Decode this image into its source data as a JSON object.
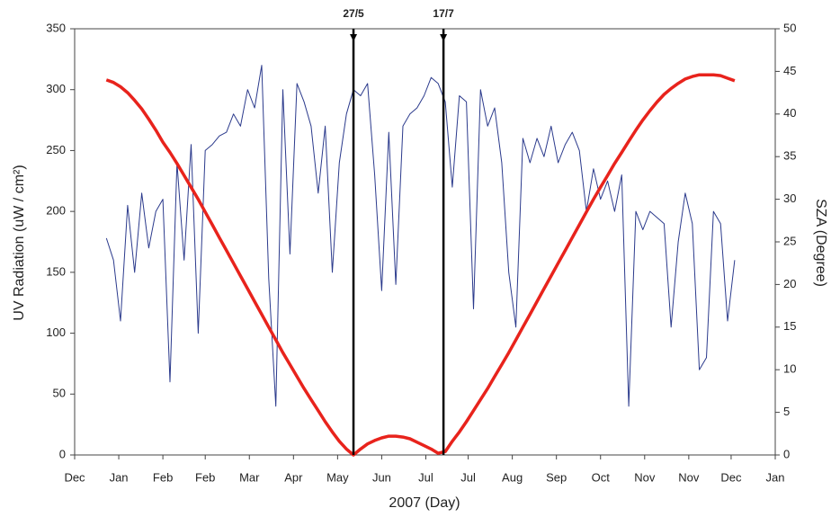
{
  "chart_data": {
    "type": "line",
    "xlabel": "2007  (Day)",
    "ylabel": "UV Radiation  (uW / cm²)",
    "y2label": "SZA  (Degree)",
    "x": [
      7,
      11,
      15,
      19,
      23,
      27,
      31,
      35,
      39,
      43,
      47,
      51,
      55,
      59,
      63,
      67,
      71,
      75,
      79,
      83,
      87,
      91,
      95,
      99,
      103,
      107,
      111,
      115,
      119,
      123,
      127,
      131,
      135,
      139,
      143,
      147,
      151,
      155,
      159,
      163,
      167,
      171,
      175,
      179,
      183,
      187,
      191,
      195,
      199,
      203,
      207,
      211,
      215,
      219,
      223,
      227,
      231,
      235,
      239,
      243,
      247,
      251,
      255,
      259,
      263,
      267,
      271,
      275,
      279,
      283,
      287,
      291,
      295,
      299,
      303,
      307,
      311,
      315,
      319,
      323,
      327,
      331,
      335,
      339,
      343,
      347,
      351,
      355,
      359,
      363
    ],
    "series": [
      {
        "name": "UV Radiation",
        "color": "#2b3a8c",
        "axis": "y",
        "values": [
          178,
          160,
          110,
          205,
          150,
          215,
          170,
          200,
          210,
          60,
          240,
          160,
          255,
          100,
          250,
          255,
          262,
          265,
          280,
          270,
          300,
          285,
          320,
          145,
          40,
          300,
          165,
          305,
          290,
          270,
          215,
          270,
          150,
          240,
          280,
          300,
          295,
          305,
          230,
          135,
          265,
          140,
          270,
          280,
          285,
          295,
          310,
          305,
          290,
          220,
          295,
          290,
          120,
          300,
          270,
          285,
          240,
          150,
          105,
          260,
          240,
          260,
          245,
          270,
          240,
          255,
          265,
          250,
          200,
          235,
          210,
          225,
          200,
          230,
          40,
          200,
          185,
          200,
          195,
          190,
          105,
          175,
          215,
          190,
          70,
          80,
          200,
          190,
          110,
          160
        ]
      },
      {
        "name": "SZA",
        "color": "#e8231c",
        "axis": "y2",
        "values": [
          44,
          43.7,
          43.2,
          42.5,
          41.6,
          40.6,
          39.4,
          38.1,
          36.7,
          35.5,
          34.2,
          32.8,
          31.4,
          30,
          28.5,
          27,
          25.5,
          24,
          22.5,
          21,
          19.5,
          18,
          16.5,
          15,
          13.5,
          12,
          10.6,
          9.2,
          7.8,
          6.5,
          5.2,
          3.9,
          2.7,
          1.6,
          0.7,
          0,
          0.7,
          1.3,
          1.7,
          2,
          2.2,
          2.2,
          2.1,
          1.9,
          1.5,
          1.1,
          0.7,
          0.2,
          0.4,
          1.6,
          2.7,
          3.9,
          5.2,
          6.5,
          7.8,
          9.2,
          10.6,
          12,
          13.5,
          15,
          16.5,
          18,
          19.5,
          21,
          22.5,
          24,
          25.5,
          27,
          28.5,
          30,
          31.4,
          32.8,
          34.2,
          35.5,
          36.8,
          38.1,
          39.3,
          40.4,
          41.4,
          42.3,
          43,
          43.6,
          44.1,
          44.4,
          44.6,
          44.6,
          44.6,
          44.5,
          44.2,
          43.9
        ]
      }
    ],
    "annotations": [
      {
        "text": "27/5",
        "x": 147
      },
      {
        "text": "17/7",
        "x": 198
      }
    ],
    "xlim": [
      -11,
      386
    ],
    "xticks": [
      {
        "value": -11,
        "label": "Dec"
      },
      {
        "value": 14,
        "label": "Jan"
      },
      {
        "value": 39,
        "label": "Feb"
      },
      {
        "value": 63,
        "label": "Feb"
      },
      {
        "value": 88,
        "label": "Mar"
      },
      {
        "value": 113,
        "label": "Apr"
      },
      {
        "value": 138,
        "label": "May"
      },
      {
        "value": 163,
        "label": "Jun"
      },
      {
        "value": 188,
        "label": "Jul"
      },
      {
        "value": 212,
        "label": "Jul"
      },
      {
        "value": 237,
        "label": "Aug"
      },
      {
        "value": 262,
        "label": "Sep"
      },
      {
        "value": 287,
        "label": "Oct"
      },
      {
        "value": 312,
        "label": "Nov"
      },
      {
        "value": 337,
        "label": "Nov"
      },
      {
        "value": 361,
        "label": "Dec"
      },
      {
        "value": 386,
        "label": "Jan"
      }
    ],
    "ylim": [
      0,
      350
    ],
    "yticks": [
      0,
      50,
      100,
      150,
      200,
      250,
      300,
      350
    ],
    "y2lim": [
      0,
      50
    ],
    "y2ticks": [
      0,
      5,
      10,
      15,
      20,
      25,
      30,
      35,
      40,
      45,
      50
    ]
  }
}
